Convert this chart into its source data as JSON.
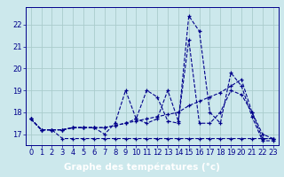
{
  "background_color": "#cce8ec",
  "plot_bg": "#cce8ec",
  "grid_color": "#aacccc",
  "line_color": "#00008b",
  "xlabel": "Graphe des températures (°c)",
  "xlabel_bg": "#00008b",
  "xlabel_fontsize": 7.5,
  "tick_fontsize": 6,
  "xlim": [
    -0.5,
    23.5
  ],
  "ylim": [
    16.5,
    22.8
  ],
  "yticks": [
    17,
    18,
    19,
    20,
    21,
    22
  ],
  "xticks": [
    0,
    1,
    2,
    3,
    4,
    5,
    6,
    7,
    8,
    9,
    10,
    11,
    12,
    13,
    14,
    15,
    16,
    17,
    18,
    19,
    20,
    21,
    22,
    23
  ],
  "series": [
    [
      17.7,
      17.2,
      17.2,
      16.8,
      16.8,
      16.8,
      16.8,
      16.8,
      16.8,
      16.8,
      16.8,
      16.8,
      16.8,
      16.8,
      16.8,
      16.8,
      16.8,
      16.8,
      16.8,
      16.8,
      16.8,
      16.8,
      16.8,
      16.8
    ],
    [
      17.7,
      17.2,
      17.2,
      17.2,
      17.3,
      17.3,
      17.3,
      17.3,
      17.4,
      17.5,
      17.6,
      17.7,
      17.8,
      17.9,
      18.0,
      18.3,
      18.5,
      18.7,
      18.9,
      19.2,
      19.5,
      18.0,
      17.0,
      16.8
    ],
    [
      17.7,
      17.2,
      17.2,
      17.2,
      17.3,
      17.3,
      17.3,
      17.3,
      17.4,
      17.5,
      17.7,
      17.5,
      17.7,
      19.0,
      17.6,
      21.3,
      17.5,
      17.5,
      18.0,
      19.0,
      18.8,
      18.0,
      16.8,
      16.8
    ],
    [
      17.7,
      17.2,
      17.2,
      17.2,
      17.3,
      17.3,
      17.3,
      17.0,
      17.5,
      19.0,
      17.7,
      19.0,
      18.7,
      17.6,
      17.5,
      22.4,
      21.7,
      18.0,
      17.5,
      19.8,
      19.2,
      17.8,
      16.7,
      16.7
    ]
  ]
}
